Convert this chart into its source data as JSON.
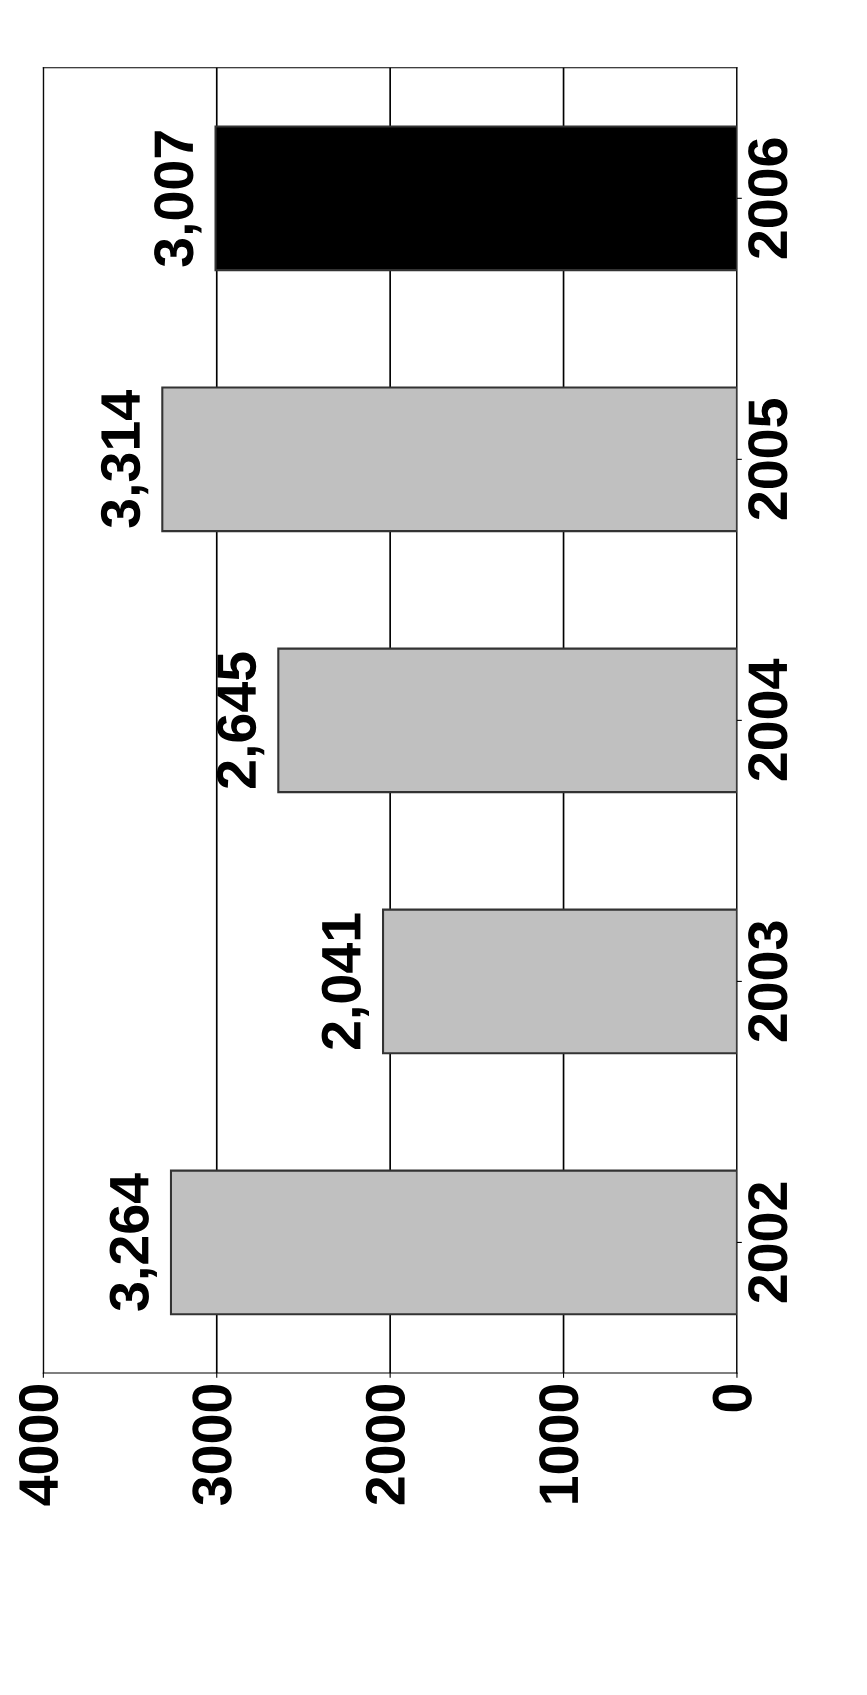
{
  "chart_data": {
    "type": "bar",
    "orientation": "horizontal",
    "categories": [
      "2006",
      "2005",
      "2004",
      "2003",
      "2002"
    ],
    "values": [
      3007,
      3314,
      2645,
      2041,
      3264
    ],
    "colors": [
      "#000000",
      "#c0c0c0",
      "#c0c0c0",
      "#c0c0c0",
      "#c0c0c0"
    ],
    "value_labels": [
      "3,007",
      "3,314",
      "2,645",
      "2,041",
      "3,264"
    ],
    "xlim": [
      4000,
      0
    ],
    "xticks": [
      0,
      1000,
      2000,
      3000,
      4000
    ],
    "grid": "x"
  }
}
